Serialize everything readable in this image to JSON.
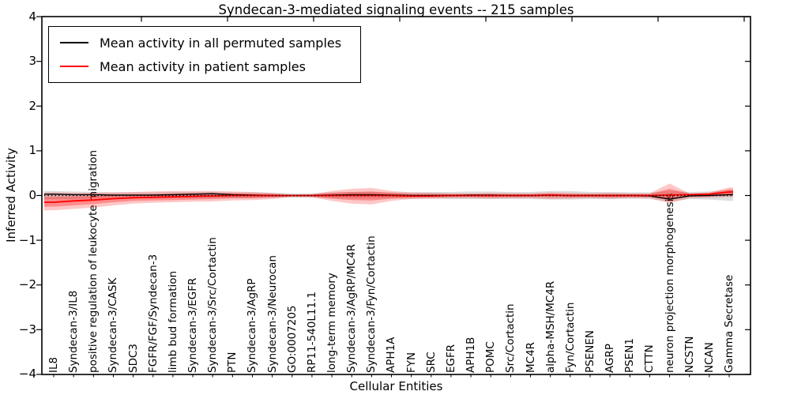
{
  "figure": {
    "title": "Syndecan-3-mediated signaling events -- 215 samples",
    "xlabel": "Cellular Entities",
    "ylabel": "Inferred Activity"
  },
  "legend": {
    "position": "upper left",
    "items": [
      {
        "label": "Mean activity in all permuted samples",
        "color": "#000000"
      },
      {
        "label": "Mean activity in patient samples",
        "color": "#ff0000"
      }
    ]
  },
  "chart_data": {
    "type": "line",
    "title": "Syndecan-3-mediated signaling events -- 215 samples",
    "xlabel": "Cellular Entities",
    "ylabel": "Inferred Activity",
    "ylim": [
      -4,
      4
    ],
    "yticks": [
      -4,
      -3,
      -2,
      -1,
      0,
      1,
      2,
      3,
      4
    ],
    "grid": false,
    "legend_position": "upper left",
    "zero_reference_line": 0,
    "categories": [
      "IL8",
      "Syndecan-3/IL8",
      "positive regulation of leukocyte migration",
      "Syndecan-3/CASK",
      "SDC3",
      "FGFR/FGF/Syndecan-3",
      "limb bud formation",
      "Syndecan-3/EGFR",
      "Syndecan-3/Src/Cortactin",
      "PTN",
      "Syndecan-3/AgRP",
      "Syndecan-3/Neurocan",
      "GO:0007205",
      "RP11-540L11.1",
      "long-term memory",
      "Syndecan-3/AgRP/MC4R",
      "Syndecan-3/Fyn/Cortactin",
      "APH1A",
      "FYN",
      "SRC",
      "EGFR",
      "APH1B",
      "POMC",
      "Src/Cortactin",
      "MC4R",
      "alpha-MSH/MC4R",
      "Fyn/Cortactin",
      "PSENEN",
      "AGRP",
      "PSEN1",
      "CTTN",
      "neuron projection morphogenesis",
      "NCSTN",
      "NCAN",
      "Gamma Secretase"
    ],
    "series": [
      {
        "name": "Mean activity in all permuted samples",
        "color": "#000000",
        "style": "solid",
        "values": [
          0.03,
          0.02,
          0.02,
          0.01,
          0.01,
          0.01,
          0.02,
          0.03,
          0.04,
          0.02,
          0.01,
          0.0,
          0.0,
          0.0,
          0.01,
          0.02,
          0.02,
          0.01,
          0.0,
          0.0,
          0.0,
          0.01,
          0.01,
          0.0,
          0.0,
          0.01,
          0.0,
          0.0,
          0.0,
          0.0,
          -0.01,
          -0.08,
          -0.01,
          0.0,
          0.02
        ]
      },
      {
        "name": "Mean activity in patient samples",
        "color": "#ff0000",
        "style": "solid",
        "values": [
          -0.15,
          -0.12,
          -0.1,
          -0.07,
          -0.05,
          -0.04,
          -0.03,
          -0.02,
          -0.01,
          0.0,
          0.0,
          0.0,
          0.0,
          0.0,
          0.0,
          0.0,
          0.0,
          0.0,
          -0.01,
          -0.01,
          0.0,
          0.0,
          0.0,
          0.0,
          0.0,
          0.01,
          0.0,
          0.0,
          0.0,
          0.0,
          0.0,
          0.01,
          0.02,
          0.03,
          0.08
        ]
      }
    ],
    "bands": [
      {
        "name": "permuted samples std band",
        "color": "#000000",
        "opacity": 0.13,
        "upper": [
          0.1,
          0.09,
          0.08,
          0.07,
          0.07,
          0.07,
          0.08,
          0.08,
          0.08,
          0.07,
          0.07,
          0.06,
          0.05,
          0.05,
          0.07,
          0.08,
          0.08,
          0.07,
          0.07,
          0.08,
          0.08,
          0.09,
          0.09,
          0.08,
          0.08,
          0.1,
          0.1,
          0.08,
          0.08,
          0.07,
          0.07,
          0.1,
          0.08,
          0.09,
          0.12
        ],
        "lower": [
          -0.08,
          -0.08,
          -0.07,
          -0.06,
          -0.06,
          -0.06,
          -0.06,
          -0.06,
          -0.06,
          -0.06,
          -0.06,
          -0.05,
          -0.05,
          -0.05,
          -0.06,
          -0.07,
          -0.07,
          -0.06,
          -0.07,
          -0.07,
          -0.08,
          -0.08,
          -0.08,
          -0.08,
          -0.08,
          -0.09,
          -0.09,
          -0.08,
          -0.08,
          -0.07,
          -0.08,
          -0.14,
          -0.08,
          -0.09,
          -0.12
        ]
      },
      {
        "name": "patient samples std band outer",
        "color": "#ff0000",
        "opacity": 0.22,
        "upper": [
          0.07,
          0.06,
          0.06,
          0.07,
          0.08,
          0.09,
          0.1,
          0.1,
          0.1,
          0.09,
          0.08,
          0.06,
          0.02,
          0.03,
          0.1,
          0.15,
          0.17,
          0.1,
          0.07,
          0.06,
          0.05,
          0.05,
          0.06,
          0.05,
          0.05,
          0.07,
          0.06,
          0.05,
          0.06,
          0.05,
          0.05,
          0.27,
          0.05,
          0.07,
          0.18
        ],
        "lower": [
          -0.33,
          -0.3,
          -0.27,
          -0.22,
          -0.18,
          -0.16,
          -0.15,
          -0.14,
          -0.13,
          -0.11,
          -0.1,
          -0.08,
          -0.03,
          -0.04,
          -0.12,
          -0.18,
          -0.2,
          -0.12,
          -0.08,
          -0.07,
          -0.06,
          -0.06,
          -0.07,
          -0.06,
          -0.06,
          -0.08,
          -0.07,
          -0.06,
          -0.07,
          -0.06,
          -0.06,
          -0.17,
          -0.06,
          -0.05,
          -0.03
        ]
      },
      {
        "name": "patient samples std band inner",
        "color": "#ff0000",
        "opacity": 0.3,
        "upper": [
          -0.03,
          -0.02,
          -0.01,
          0.01,
          0.02,
          0.03,
          0.04,
          0.05,
          0.05,
          0.05,
          0.04,
          0.03,
          0.01,
          0.02,
          0.06,
          0.08,
          0.09,
          0.06,
          0.03,
          0.03,
          0.03,
          0.03,
          0.03,
          0.03,
          0.03,
          0.04,
          0.03,
          0.03,
          0.03,
          0.03,
          0.03,
          0.15,
          0.04,
          0.05,
          0.14
        ],
        "lower": [
          -0.25,
          -0.22,
          -0.19,
          -0.15,
          -0.12,
          -0.11,
          -0.1,
          -0.09,
          -0.08,
          -0.06,
          -0.06,
          -0.04,
          -0.02,
          -0.02,
          -0.07,
          -0.1,
          -0.11,
          -0.07,
          -0.05,
          -0.04,
          -0.03,
          -0.03,
          -0.04,
          -0.03,
          -0.03,
          -0.04,
          -0.04,
          -0.03,
          -0.04,
          -0.03,
          -0.03,
          -0.09,
          -0.02,
          -0.01,
          0.02
        ]
      }
    ]
  }
}
